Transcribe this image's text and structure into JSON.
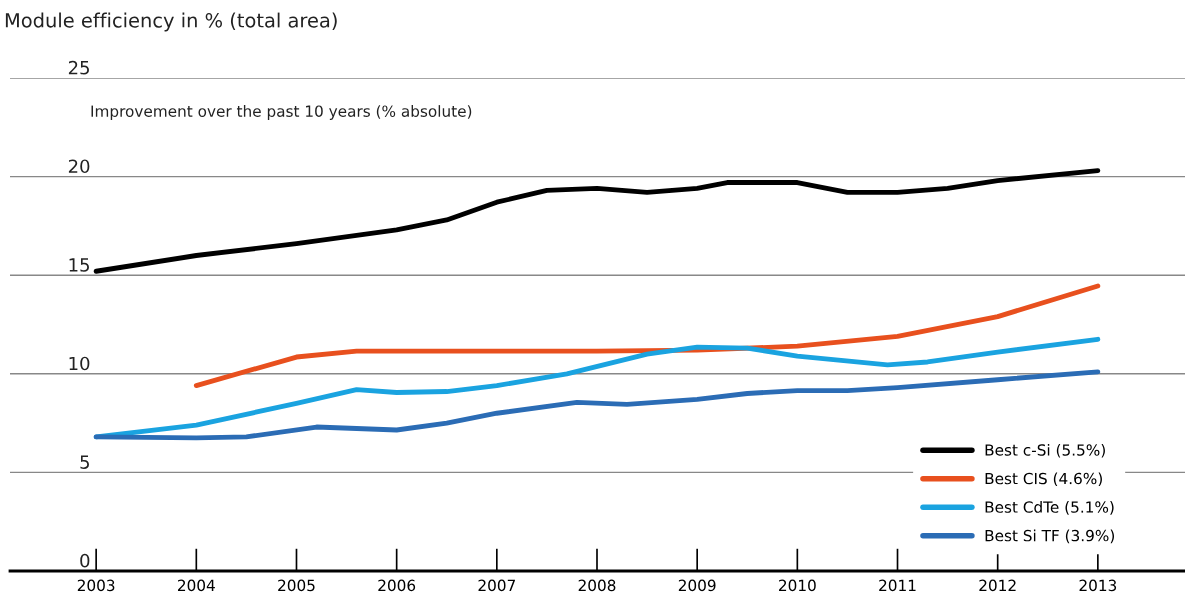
{
  "chart_data": {
    "type": "line",
    "title": "Module efficiency in % (total area)",
    "annotations": [
      "Improvement over the past 10 years (% absolute)"
    ],
    "xlim": [
      2002.14,
      2013.87
    ],
    "xticks": [
      2003,
      2004,
      2005,
      2006,
      2007,
      2008,
      2009,
      2010,
      2011,
      2012,
      2013
    ],
    "ylim": [
      0,
      25
    ],
    "yticks": [
      0,
      5,
      10,
      15,
      20,
      25
    ],
    "grid": "y",
    "legend": "bottom right",
    "marker": "none",
    "line_style": "solid",
    "series": [
      {
        "name": "Best c-Si (5.5%)",
        "color": "#000000",
        "x": [
          2003,
          2004,
          2005,
          2006,
          2006.5,
          2007,
          2007.5,
          2008,
          2008.5,
          2009,
          2009.3,
          2010,
          2010.5,
          2011,
          2011.5,
          2012,
          2013
        ],
        "values": [
          15.2,
          16.0,
          16.6,
          17.3,
          17.8,
          18.7,
          19.3,
          19.4,
          19.2,
          19.4,
          19.7,
          19.7,
          19.2,
          19.2,
          19.4,
          19.8,
          20.3
        ]
      },
      {
        "name": "Best CIS (4.6%)",
        "color": "#e8501e",
        "x": [
          2004,
          2005,
          2005.6,
          2006,
          2007,
          2008,
          2009,
          2010,
          2011,
          2012,
          2013
        ],
        "values": [
          9.4,
          10.85,
          11.15,
          11.15,
          11.15,
          11.15,
          11.2,
          11.4,
          11.9,
          12.9,
          14.45
        ]
      },
      {
        "name": "Best CdTe (5.1%)",
        "color": "#1aa3e0",
        "x": [
          2003,
          2004,
          2005,
          2005.6,
          2006,
          2006.5,
          2007,
          2007.7,
          2008.5,
          2009,
          2009.5,
          2010,
          2010.9,
          2011.3,
          2012,
          2013
        ],
        "values": [
          6.8,
          7.4,
          8.5,
          9.2,
          9.05,
          9.1,
          9.4,
          10.0,
          11.0,
          11.35,
          11.3,
          10.9,
          10.45,
          10.6,
          11.1,
          11.75
        ]
      },
      {
        "name": "Best Si TF (3.9%)",
        "color": "#2b6cb5",
        "x": [
          2003,
          2004,
          2004.5,
          2005.2,
          2006,
          2006.5,
          2007,
          2007.8,
          2008.3,
          2009,
          2009.5,
          2010,
          2010.5,
          2011,
          2012,
          2013
        ],
        "values": [
          6.8,
          6.75,
          6.8,
          7.3,
          7.15,
          7.5,
          8.0,
          8.55,
          8.45,
          8.7,
          9.0,
          9.15,
          9.15,
          9.3,
          9.7,
          10.1
        ]
      }
    ]
  }
}
